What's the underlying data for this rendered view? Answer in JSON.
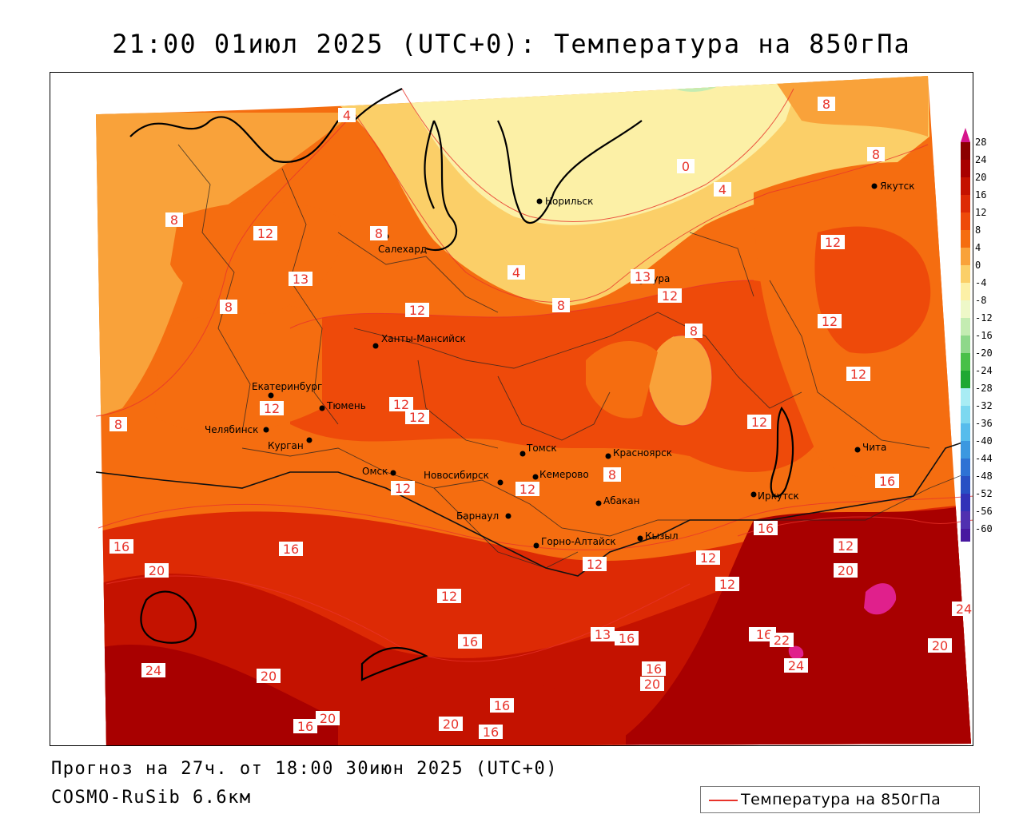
{
  "title": "21:00 01июл 2025 (UTC+0): Температура на 850гПа",
  "footer": {
    "forecast": "Прогноз на 27ч. от 18:00 30июн 2025 (UTC+0)",
    "model": "COSMO-RuSib 6.6км"
  },
  "legend": {
    "label": "Температура на 850гПа",
    "line_color": "#e8332a"
  },
  "colorbar": {
    "ticks": [
      "28",
      "24",
      "20",
      "16",
      "12",
      "8",
      "4",
      "0",
      "-4",
      "-8",
      "-12",
      "-16",
      "-20",
      "-24",
      "-28",
      "-32",
      "-36",
      "-40",
      "-44",
      "-48",
      "-52",
      "-56",
      "-60"
    ],
    "colors": [
      "#8b0000",
      "#a80000",
      "#c41200",
      "#dd2a05",
      "#ee4a0a",
      "#f56d10",
      "#f9a23a",
      "#fbcf68",
      "#fcf0a6",
      "#eef8c8",
      "#c4ecb2",
      "#8ed88a",
      "#48c048",
      "#1fa832",
      "#a8ecf4",
      "#7cd8f0",
      "#56bcec",
      "#3c98e0",
      "#2e72d4",
      "#2850c4",
      "#3232b8",
      "#5030b0",
      "#4818a0"
    ]
  },
  "cities": [
    {
      "name": "Норильск"
    },
    {
      "name": "Якутск"
    },
    {
      "name": "Салехард"
    },
    {
      "name": "Тура"
    },
    {
      "name": "Ханты-Мансийск"
    },
    {
      "name": "Екатеринбург"
    },
    {
      "name": "Тюмень"
    },
    {
      "name": "Челябинск"
    },
    {
      "name": "Курган"
    },
    {
      "name": "Омск"
    },
    {
      "name": "Новосибирск"
    },
    {
      "name": "Томск"
    },
    {
      "name": "Кемерово"
    },
    {
      "name": "Красноярск"
    },
    {
      "name": "Барнаул"
    },
    {
      "name": "Абакан"
    },
    {
      "name": "Горно-Алтайск"
    },
    {
      "name": "Кызыл"
    },
    {
      "name": "Иркутск"
    },
    {
      "name": "Чита"
    }
  ],
  "isotherm_labels": [
    "8",
    "4",
    "0",
    "4",
    "8",
    "8",
    "12",
    "13",
    "8",
    "12",
    "12",
    "8",
    "12",
    "8",
    "12",
    "12",
    "12",
    "12",
    "12",
    "4",
    "8",
    "8",
    "8",
    "13",
    "12",
    "12",
    "12",
    "16",
    "16",
    "20",
    "16",
    "12",
    "16",
    "16",
    "12",
    "12",
    "16",
    "13",
    "24",
    "20",
    "20",
    "16",
    "16",
    "16",
    "20",
    "16",
    "20",
    "12",
    "12",
    "16",
    "16",
    "20",
    "24",
    "24",
    "22",
    "20"
  ]
}
